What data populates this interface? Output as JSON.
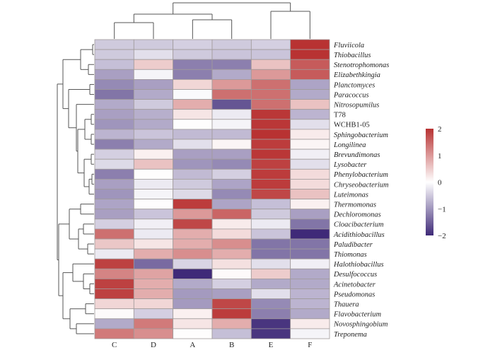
{
  "chart_data": {
    "type": "heatmap",
    "title": "",
    "columns": [
      "C",
      "D",
      "A",
      "B",
      "E",
      "F"
    ],
    "rows": [
      {
        "name": "Fluviicola",
        "italic": true
      },
      {
        "name": "Thiobacillus",
        "italic": true
      },
      {
        "name": "Stenotrophomonas",
        "italic": true
      },
      {
        "name": "Elizabethkingia",
        "italic": true
      },
      {
        "name": "Planctomyces",
        "italic": true
      },
      {
        "name": "Paracoccus",
        "italic": true
      },
      {
        "name": "Nitrosopumilus",
        "italic": true
      },
      {
        "name": "T78",
        "italic": false
      },
      {
        "name": "WCHB1-05",
        "italic": false
      },
      {
        "name": "Sphingobacterium",
        "italic": true
      },
      {
        "name": "Longilinea",
        "italic": true
      },
      {
        "name": "Brevundimonas",
        "italic": true
      },
      {
        "name": "Lysobacter",
        "italic": true
      },
      {
        "name": "Phenylobacterium",
        "italic": true
      },
      {
        "name": "Chryseobacterium",
        "italic": true
      },
      {
        "name": "Luteimonas",
        "italic": true
      },
      {
        "name": "Thermomonas",
        "italic": true
      },
      {
        "name": "Dechloromonas",
        "italic": true
      },
      {
        "name": "Cloacibacterium",
        "italic": true
      },
      {
        "name": "Acidithiobacillus",
        "italic": true
      },
      {
        "name": "Paludibacter",
        "italic": true
      },
      {
        "name": "Thiomonas",
        "italic": true
      },
      {
        "name": "Halothiobacillus",
        "italic": true
      },
      {
        "name": "Desulfococcus",
        "italic": true
      },
      {
        "name": "Acinetobacter",
        "italic": true
      },
      {
        "name": "Pseudomonas",
        "italic": true
      },
      {
        "name": "Thauera",
        "italic": true
      },
      {
        "name": "Flavobacterium",
        "italic": true
      },
      {
        "name": "Novosphingobium",
        "italic": true
      },
      {
        "name": "Treponema",
        "italic": true
      }
    ],
    "values": [
      [
        -0.5,
        -0.5,
        -0.45,
        -0.5,
        -0.45,
        2.0
      ],
      [
        -0.5,
        -0.3,
        -0.5,
        -0.55,
        -0.55,
        2.0
      ],
      [
        -0.6,
        0.5,
        -1.2,
        -1.2,
        0.6,
        1.6
      ],
      [
        -0.9,
        -0.1,
        -1.2,
        -0.8,
        1.0,
        1.6
      ],
      [
        -1.1,
        -0.9,
        0.4,
        1.0,
        1.4,
        -0.85
      ],
      [
        -1.3,
        -0.8,
        -0.05,
        1.4,
        1.4,
        -0.8
      ],
      [
        -0.8,
        -0.5,
        0.8,
        -1.6,
        1.4,
        0.6
      ],
      [
        -0.9,
        -0.75,
        0.25,
        -0.2,
        1.95,
        -0.7
      ],
      [
        -1.0,
        -0.8,
        0.02,
        -0.1,
        1.95,
        -0.3
      ],
      [
        -0.7,
        -0.55,
        -0.65,
        -0.65,
        2.0,
        0.2
      ],
      [
        -1.2,
        -0.8,
        -0.3,
        0.1,
        1.9,
        0.1
      ],
      [
        -0.45,
        0.15,
        -0.9,
        -0.9,
        1.95,
        -0.15
      ],
      [
        -0.35,
        0.6,
        -1.0,
        -1.1,
        1.85,
        -0.3
      ],
      [
        -1.2,
        0.02,
        -0.65,
        -0.45,
        1.9,
        0.35
      ],
      [
        -0.9,
        -0.2,
        -0.5,
        -0.85,
        1.9,
        0.35
      ],
      [
        -1.0,
        -0.1,
        -0.35,
        -1.1,
        1.8,
        0.6
      ],
      [
        -0.85,
        0.02,
        1.9,
        -0.85,
        -0.6,
        0.15
      ],
      [
        -0.9,
        -0.55,
        1.0,
        1.5,
        -0.5,
        -0.9
      ],
      [
        -0.45,
        -0.15,
        1.8,
        0.2,
        -0.2,
        -1.3
      ],
      [
        1.4,
        -0.2,
        0.8,
        0.35,
        -0.55,
        -2.0
      ],
      [
        0.55,
        0.25,
        0.8,
        1.1,
        -1.3,
        -1.3
      ],
      [
        -0.2,
        0.8,
        1.1,
        0.8,
        -1.3,
        -1.3
      ],
      [
        1.85,
        -1.4,
        -0.4,
        0.3,
        -0.3,
        -0.15
      ],
      [
        1.2,
        0.9,
        -2.0,
        0.05,
        0.5,
        -0.8
      ],
      [
        1.85,
        0.8,
        -0.8,
        -0.45,
        -0.8,
        -0.8
      ],
      [
        1.85,
        0.8,
        -0.95,
        -0.9,
        -0.3,
        -0.7
      ],
      [
        0.4,
        0.4,
        -0.95,
        1.8,
        -1.1,
        -0.7
      ],
      [
        0.05,
        -0.45,
        0.15,
        1.9,
        -1.2,
        -0.8
      ],
      [
        -0.8,
        1.3,
        0.25,
        0.8,
        -1.9,
        0.2
      ],
      [
        1.3,
        1.1,
        0.02,
        -0.6,
        -1.9,
        -0.1
      ]
    ],
    "legend": {
      "type": "colorbar",
      "range": [
        -2,
        2
      ],
      "ticks": [
        "2",
        "1",
        "0",
        "−1",
        "−2"
      ],
      "tick_values": [
        2,
        1,
        0,
        -1,
        -2
      ],
      "colors": {
        "low": "#3f2a78",
        "mid": "#ffffff",
        "high": "#b83232"
      },
      "placement": "right"
    },
    "column_dendrogram": {
      "description": "((C,D),(A,B)),(E,F)"
    },
    "row_dendrogram": {
      "description": "hierarchical clustering of rows"
    }
  }
}
